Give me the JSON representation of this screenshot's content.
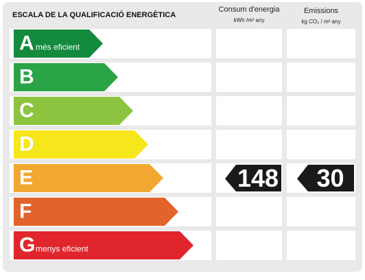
{
  "header": {
    "title": "ESCALA DE LA QUALIFICACIÓ ENERGÈTICA",
    "columns": [
      {
        "title": "Consum d'energia",
        "unit": "kWh /m² any"
      },
      {
        "title": "Emissions",
        "unit": "kg CO₂ / m² any"
      }
    ]
  },
  "rows": [
    {
      "letter": "A",
      "label": "més eficient",
      "color": "#138a3d"
    },
    {
      "letter": "B",
      "color": "#2aa447"
    },
    {
      "letter": "C",
      "color": "#8cc43f"
    },
    {
      "letter": "D",
      "color": "#f6e61c"
    },
    {
      "letter": "E",
      "color": "#f2a830",
      "consum": 148,
      "emissions": 30
    },
    {
      "letter": "F",
      "color": "#e2632b"
    },
    {
      "letter": "G",
      "label": "menys eficient",
      "color": "#e0262c"
    }
  ]
}
